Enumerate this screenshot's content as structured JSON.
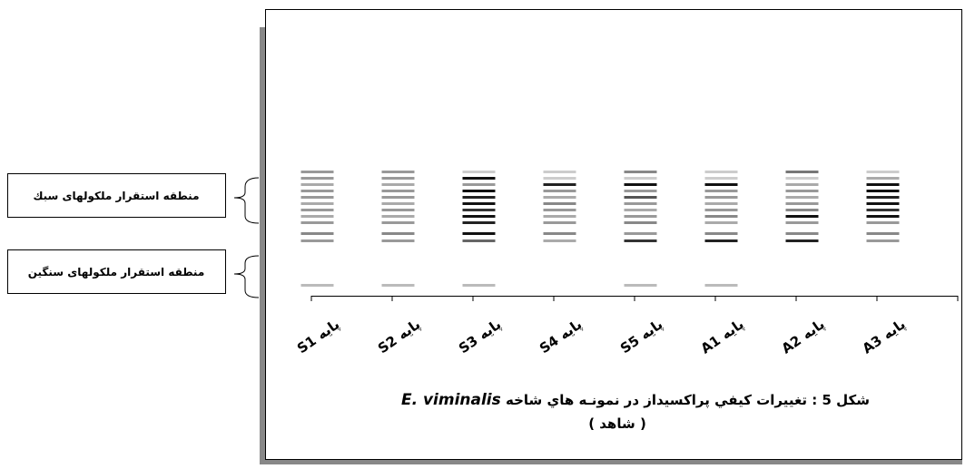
{
  "zones": {
    "light": "منطقه استقرار ملكولهای سبك",
    "heavy": "منطقه استقرار ملكولهای سنگين"
  },
  "lanes": [
    {
      "label": "S1 پايه",
      "bands": [
        "#999",
        "#999",
        "#aaa",
        "#999",
        "#999",
        "#aaa",
        "#999",
        "#aaa",
        "#999",
        "#888",
        "#999",
        "#bbb"
      ]
    },
    {
      "label": "S2 پايه",
      "bands": [
        "#999",
        "#999",
        "#aaa",
        "#999",
        "#999",
        "#aaa",
        "#999",
        "#aaa",
        "#999",
        "#888",
        "#999",
        "#bbb"
      ]
    },
    {
      "label": "S3 پايه",
      "bands": [
        "#ccc",
        "#111",
        "#999",
        "#111",
        "#222",
        "#111",
        "#333",
        "#111",
        "#222",
        "#111",
        "#666",
        "#bbb"
      ]
    },
    {
      "label": "S4 پايه",
      "bands": [
        "#ccc",
        "#ccc",
        "#222",
        "#999",
        "#aaa",
        "#888",
        "#999",
        "#aaa",
        "#999",
        "#888",
        "#aaa",
        null
      ]
    },
    {
      "label": "S5 پايه",
      "bands": [
        "#888",
        "#ccc",
        "#111",
        "#999",
        "#555",
        "#999",
        "#aaa",
        "#999",
        "#888",
        "#999",
        "#333",
        "#bbb"
      ]
    },
    {
      "label": "A1 پايه",
      "bands": [
        "#ccc",
        "#ccc",
        "#111",
        "#999",
        "#999",
        "#aaa",
        "#999",
        "#888",
        "#aaa",
        "#888",
        "#222",
        "#bbb"
      ]
    },
    {
      "label": "A2 پايه",
      "bands": [
        "#777",
        "#ccc",
        "#aaa",
        "#999",
        "#aaa",
        "#999",
        "#888",
        "#111",
        "#999",
        "#888",
        "#222",
        null
      ]
    },
    {
      "label": "A3 پايه",
      "bands": [
        "#ccc",
        "#aaa",
        "#111",
        "#111",
        "#222",
        "#111",
        "#333",
        "#111",
        "#999",
        "#888",
        "#999",
        null
      ]
    }
  ],
  "caption": {
    "line1": "شکل 5 : تغييرات کيفي پراکسيداز در نمونـه هاي شاخه",
    "species": "E. viminalis",
    "line2": "( شاهد )"
  }
}
